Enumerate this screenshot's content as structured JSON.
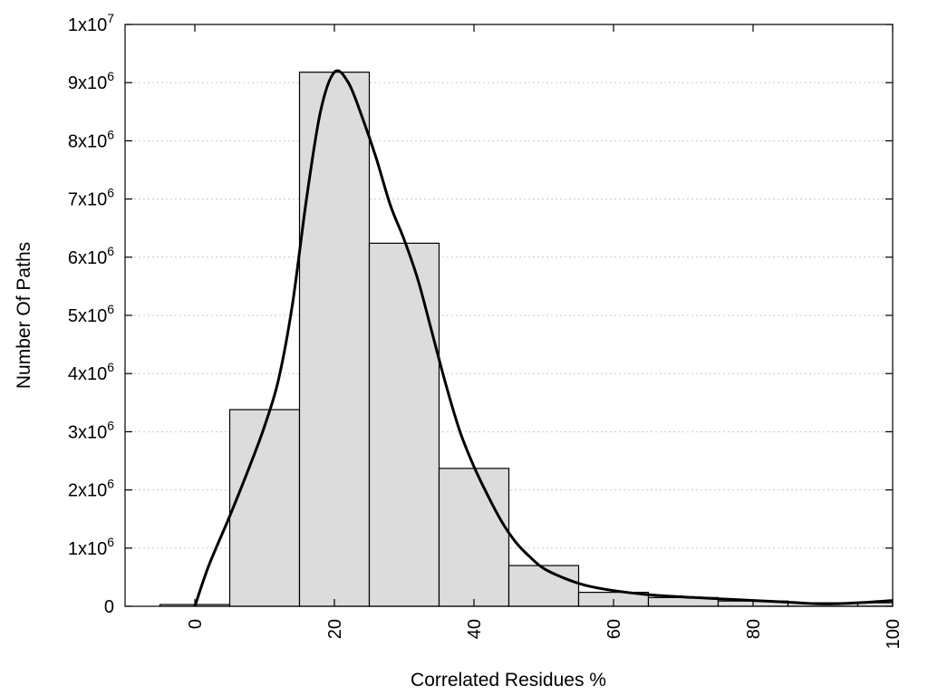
{
  "chart_data": {
    "type": "bar",
    "xlabel": "Correlated Residues %",
    "ylabel": "Number Of Paths",
    "xlim": [
      -10,
      100
    ],
    "ylim": [
      0,
      10000000
    ],
    "x_ticks": [
      0,
      20,
      40,
      60,
      80,
      100
    ],
    "x_tick_labels": [
      "0",
      "20",
      "40",
      "60",
      "80",
      "100"
    ],
    "y_ticks": [
      0,
      1000000,
      2000000,
      3000000,
      4000000,
      5000000,
      6000000,
      7000000,
      8000000,
      9000000,
      10000000
    ],
    "y_tick_labels": [
      {
        "base": "0",
        "exp": ""
      },
      {
        "base": "1x10",
        "exp": "6"
      },
      {
        "base": "2x10",
        "exp": "6"
      },
      {
        "base": "3x10",
        "exp": "6"
      },
      {
        "base": "4x10",
        "exp": "6"
      },
      {
        "base": "5x10",
        "exp": "6"
      },
      {
        "base": "6x10",
        "exp": "6"
      },
      {
        "base": "7x10",
        "exp": "6"
      },
      {
        "base": "8x10",
        "exp": "6"
      },
      {
        "base": "9x10",
        "exp": "6"
      },
      {
        "base": "1x10",
        "exp": "7"
      }
    ],
    "grid": true,
    "bar_width": 10,
    "bars": [
      {
        "x": 0,
        "value": 30000
      },
      {
        "x": 10,
        "value": 3380000
      },
      {
        "x": 20,
        "value": 9180000
      },
      {
        "x": 30,
        "value": 6240000
      },
      {
        "x": 40,
        "value": 2370000
      },
      {
        "x": 50,
        "value": 700000
      },
      {
        "x": 60,
        "value": 240000
      },
      {
        "x": 70,
        "value": 150000
      },
      {
        "x": 80,
        "value": 90000
      },
      {
        "x": 90,
        "value": 60000
      },
      {
        "x": 100,
        "value": 60000
      }
    ],
    "curve": [
      [
        0,
        0
      ],
      [
        2,
        700000
      ],
      [
        5,
        1550000
      ],
      [
        8,
        2450000
      ],
      [
        10,
        3100000
      ],
      [
        12,
        3900000
      ],
      [
        14,
        5200000
      ],
      [
        16,
        7000000
      ],
      [
        18,
        8500000
      ],
      [
        20,
        9180000
      ],
      [
        22,
        9000000
      ],
      [
        24,
        8400000
      ],
      [
        26,
        7700000
      ],
      [
        28,
        6900000
      ],
      [
        30,
        6300000
      ],
      [
        32,
        5600000
      ],
      [
        34,
        4700000
      ],
      [
        36,
        3800000
      ],
      [
        38,
        3000000
      ],
      [
        40,
        2400000
      ],
      [
        42,
        1900000
      ],
      [
        44,
        1450000
      ],
      [
        46,
        1100000
      ],
      [
        48,
        850000
      ],
      [
        50,
        650000
      ],
      [
        53,
        480000
      ],
      [
        56,
        360000
      ],
      [
        60,
        270000
      ],
      [
        65,
        200000
      ],
      [
        70,
        160000
      ],
      [
        75,
        130000
      ],
      [
        80,
        100000
      ],
      [
        85,
        70000
      ],
      [
        90,
        40000
      ],
      [
        95,
        60000
      ],
      [
        100,
        100000
      ]
    ]
  }
}
